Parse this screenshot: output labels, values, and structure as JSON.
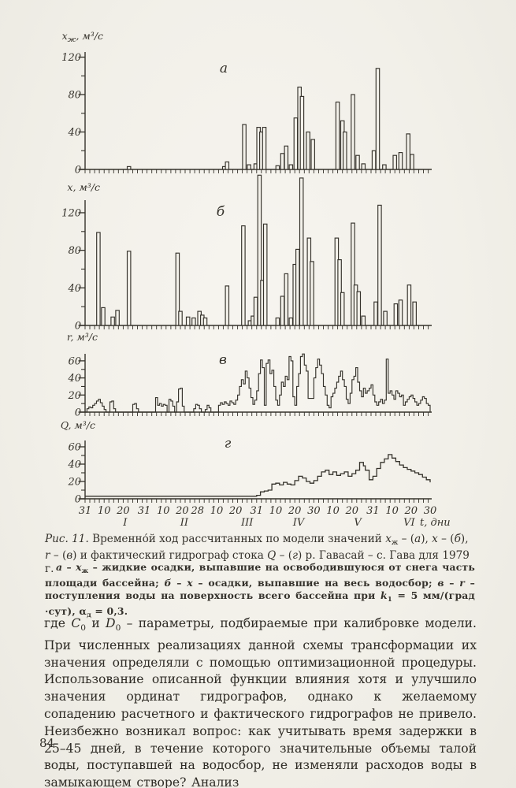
{
  "page": {
    "number": "84",
    "ink": "#35322b",
    "paper": "#f3f1ea"
  },
  "figure": {
    "caption": "<i>Рис. 11.</i> Временно́й ход рассчитанных по модели значений <i>x</i><sub>ж</sub> – (<i>а</i>), <i>x</i> – (<i>б</i>), <i>r</i> – (<i>в</i>) и фактический гидрограф стока <i>Q</i> – (<i>г</i>) р. Гавасай – с. Гава для 1979 г.",
    "legend": "<i>а</i> – <i>x</i><sub>ж</sub> – жидкие осадки, выпавшие на освободившуюся от снега часть площади бассейна; <i>б</i> – <i>x</i> – осадки, выпавшие на весь водосбор; <i>в</i> – <i>r</i> – поступления воды на поверхность всего бассейна при <i>k</i><sub>1</sub> = 5 мм/(град ·сут), α<sub>д</sub> = 0,3."
  },
  "text": {
    "paragraph": "где <i>C</i><sub>0</sub> и <i>D</i><sub>0</sub> – параметры, подбираемые при калибровке модели. При численных реализациях данной схемы трансформации их значения определяли с помощью оптимизационной процедуры. Использование описанной функции влияния хотя и улучшило значения ординат гидрографов, однако к желаемому сопадению расчетного и фактического гидрографов не привело. Неизбежно возникал вопрос: как учитывать время задержки в 25–45 дней, в течение которого значительные объемы талой воды, поступавшей на водосбор, не изменяли расходов воды в замыкающем створе? Анализ"
  },
  "chart_data": {
    "xaxis": {
      "domain_days": [
        0,
        181
      ],
      "minor_step_days": 2.5,
      "axis_title": "t, дни",
      "day_labels": [
        [
          0,
          "31"
        ],
        [
          10,
          "10"
        ],
        [
          20,
          "20"
        ],
        [
          31,
          "31"
        ],
        [
          41,
          "10"
        ],
        [
          51,
          "20"
        ],
        [
          59,
          "28"
        ],
        [
          69,
          "10"
        ],
        [
          79,
          "20"
        ],
        [
          90,
          "31"
        ],
        [
          100,
          "10"
        ],
        [
          110,
          "20"
        ],
        [
          120,
          "30"
        ],
        [
          130,
          "10"
        ],
        [
          140,
          "20"
        ],
        [
          151,
          "31"
        ],
        [
          161,
          "10"
        ],
        [
          171,
          "20"
        ],
        [
          181,
          "30"
        ]
      ],
      "months": [
        [
          21,
          "I"
        ],
        [
          52,
          "II"
        ],
        [
          85,
          "III"
        ],
        [
          112,
          "IV"
        ],
        [
          143,
          "V"
        ],
        [
          170,
          "VI"
        ]
      ]
    },
    "charts": [
      {
        "id": "a",
        "letter": "а",
        "type": "bar",
        "ylabel": {
          "var": "x",
          "sub": "ж",
          "units": ", м³/с"
        },
        "ylim": [
          0,
          120
        ],
        "yticks": [
          0,
          40,
          80,
          120
        ],
        "yminor": [
          20,
          60,
          100
        ],
        "bars": [
          [
            23,
            3
          ],
          [
            73,
            3
          ],
          [
            74.5,
            8
          ],
          [
            83.5,
            48
          ],
          [
            86,
            5
          ],
          [
            89.5,
            6
          ],
          [
            91,
            45
          ],
          [
            92.5,
            40
          ],
          [
            94,
            45
          ],
          [
            101,
            4
          ],
          [
            103.5,
            17
          ],
          [
            105.5,
            25
          ],
          [
            108,
            5
          ],
          [
            110.5,
            55
          ],
          [
            112.5,
            88
          ],
          [
            113.8,
            78
          ],
          [
            117,
            40
          ],
          [
            119.5,
            32
          ],
          [
            132.5,
            72
          ],
          [
            135,
            52
          ],
          [
            136.3,
            40
          ],
          [
            140.5,
            80
          ],
          [
            143,
            15
          ],
          [
            146,
            6
          ],
          [
            151.5,
            20
          ],
          [
            153.5,
            108
          ],
          [
            157,
            5
          ],
          [
            162.5,
            15
          ],
          [
            165.5,
            18
          ],
          [
            169.5,
            38
          ],
          [
            171.5,
            16
          ]
        ]
      },
      {
        "id": "b",
        "letter": "б",
        "type": "bar",
        "ylabel": {
          "var": "x",
          "sub": "",
          "units": ", м³/с"
        },
        "ylim": [
          0,
          120
        ],
        "yticks": [
          0,
          40,
          80,
          120
        ],
        "yminor": [
          20,
          60,
          100
        ],
        "bars": [
          [
            7,
            99
          ],
          [
            9.5,
            19
          ],
          [
            14.5,
            9
          ],
          [
            17,
            16
          ],
          [
            23,
            79
          ],
          [
            48.5,
            77
          ],
          [
            50,
            15
          ],
          [
            54,
            9
          ],
          [
            57,
            8
          ],
          [
            60,
            15
          ],
          [
            61.5,
            11
          ],
          [
            63,
            8
          ],
          [
            74.5,
            42
          ],
          [
            83,
            106
          ],
          [
            86.5,
            5
          ],
          [
            88,
            10
          ],
          [
            89.5,
            30
          ],
          [
            91.5,
            160
          ],
          [
            93,
            48
          ],
          [
            94.5,
            108
          ],
          [
            101,
            8
          ],
          [
            103.5,
            31
          ],
          [
            105.5,
            55
          ],
          [
            108,
            8
          ],
          [
            110,
            65
          ],
          [
            111.5,
            81
          ],
          [
            113.5,
            157
          ],
          [
            117.5,
            93
          ],
          [
            119,
            68
          ],
          [
            132,
            93
          ],
          [
            133.5,
            70
          ],
          [
            135,
            35
          ],
          [
            140.5,
            109
          ],
          [
            142,
            43
          ],
          [
            143.5,
            36
          ],
          [
            146,
            10
          ],
          [
            152.5,
            25
          ],
          [
            154.5,
            128
          ],
          [
            157.5,
            15
          ],
          [
            163,
            23
          ],
          [
            165.5,
            27
          ],
          [
            170,
            43
          ],
          [
            172.8,
            25
          ]
        ]
      },
      {
        "id": "v",
        "letter": "в",
        "type": "step",
        "ylabel": {
          "var": "r",
          "sub": "",
          "units": ", м³/с"
        },
        "ylim": [
          0,
          70
        ],
        "yticks": [
          0,
          20,
          40,
          60
        ],
        "yminor": [
          10,
          30,
          50
        ],
        "steps": [
          [
            1,
            4
          ],
          [
            2,
            6
          ],
          [
            3,
            5
          ],
          [
            4,
            8
          ],
          [
            5,
            10
          ],
          [
            6,
            13
          ],
          [
            7,
            15
          ],
          [
            8,
            11
          ],
          [
            9,
            7
          ],
          [
            10,
            3
          ],
          [
            13,
            12
          ],
          [
            14,
            13
          ],
          [
            15,
            4
          ],
          [
            25,
            9
          ],
          [
            26,
            10
          ],
          [
            27,
            4
          ],
          [
            37,
            17
          ],
          [
            38,
            8
          ],
          [
            39,
            10
          ],
          [
            40,
            7
          ],
          [
            41,
            9
          ],
          [
            42,
            8
          ],
          [
            44,
            15
          ],
          [
            45,
            13
          ],
          [
            46,
            7
          ],
          [
            48,
            12
          ],
          [
            49,
            27
          ],
          [
            50,
            28
          ],
          [
            51,
            7
          ],
          [
            57,
            4
          ],
          [
            58,
            9
          ],
          [
            59,
            8
          ],
          [
            60,
            4
          ],
          [
            63,
            3
          ],
          [
            64,
            8
          ],
          [
            65,
            5
          ],
          [
            70,
            8
          ],
          [
            71,
            11
          ],
          [
            72,
            9
          ],
          [
            73,
            12
          ],
          [
            74,
            10
          ],
          [
            75,
            8
          ],
          [
            76,
            13
          ],
          [
            77,
            11
          ],
          [
            78,
            9
          ],
          [
            79,
            14
          ],
          [
            80,
            20
          ],
          [
            81,
            30
          ],
          [
            82,
            38
          ],
          [
            83,
            33
          ],
          [
            84,
            48
          ],
          [
            85,
            40
          ],
          [
            86,
            28
          ],
          [
            87,
            17
          ],
          [
            88,
            9
          ],
          [
            89,
            14
          ],
          [
            90,
            25
          ],
          [
            91,
            45
          ],
          [
            92,
            61
          ],
          [
            93,
            52
          ],
          [
            94,
            8
          ],
          [
            95,
            57
          ],
          [
            96,
            61
          ],
          [
            97,
            45
          ],
          [
            98,
            49
          ],
          [
            99,
            30
          ],
          [
            100,
            14
          ],
          [
            101,
            8
          ],
          [
            102,
            20
          ],
          [
            103,
            35
          ],
          [
            104,
            30
          ],
          [
            105,
            42
          ],
          [
            106,
            38
          ],
          [
            107,
            65
          ],
          [
            108,
            60
          ],
          [
            109,
            18
          ],
          [
            110,
            8
          ],
          [
            111,
            30
          ],
          [
            112,
            45
          ],
          [
            113,
            65
          ],
          [
            114,
            68
          ],
          [
            115,
            55
          ],
          [
            116,
            48
          ],
          [
            117,
            16
          ],
          [
            118,
            16
          ],
          [
            119,
            16
          ],
          [
            120,
            40
          ],
          [
            121,
            52
          ],
          [
            122,
            62
          ],
          [
            123,
            55
          ],
          [
            124,
            45
          ],
          [
            125,
            30
          ],
          [
            126,
            20
          ],
          [
            127,
            8
          ],
          [
            128,
            5
          ],
          [
            129,
            18
          ],
          [
            130,
            22
          ],
          [
            131,
            28
          ],
          [
            132,
            35
          ],
          [
            133,
            42
          ],
          [
            134,
            48
          ],
          [
            135,
            38
          ],
          [
            136,
            30
          ],
          [
            137,
            15
          ],
          [
            138,
            10
          ],
          [
            139,
            22
          ],
          [
            140,
            38
          ],
          [
            141,
            42
          ],
          [
            142,
            52
          ],
          [
            143,
            35
          ],
          [
            144,
            25
          ],
          [
            145,
            18
          ],
          [
            146,
            28
          ],
          [
            147,
            22
          ],
          [
            148,
            25
          ],
          [
            149,
            28
          ],
          [
            150,
            32
          ],
          [
            151,
            20
          ],
          [
            152,
            12
          ],
          [
            153,
            8
          ],
          [
            154,
            12
          ],
          [
            155,
            15
          ],
          [
            156,
            10
          ],
          [
            157,
            14
          ],
          [
            158,
            62
          ],
          [
            159,
            22
          ],
          [
            160,
            25
          ],
          [
            161,
            20
          ],
          [
            162,
            15
          ],
          [
            163,
            25
          ],
          [
            164,
            22
          ],
          [
            165,
            18
          ],
          [
            166,
            20
          ],
          [
            167,
            8
          ],
          [
            168,
            12
          ],
          [
            169,
            15
          ],
          [
            170,
            18
          ],
          [
            171,
            20
          ],
          [
            172,
            16
          ],
          [
            173,
            12
          ],
          [
            174,
            8
          ],
          [
            175,
            10
          ],
          [
            176,
            14
          ],
          [
            177,
            18
          ],
          [
            178,
            16
          ],
          [
            179,
            10
          ],
          [
            180,
            8
          ],
          [
            181,
            6
          ]
        ]
      },
      {
        "id": "g",
        "letter": "г",
        "type": "line",
        "ylabel": {
          "var": "Q",
          "sub": "",
          "units": ", м³/с"
        },
        "ylim": [
          0,
          60
        ],
        "yticks": [
          0,
          20,
          40,
          60
        ],
        "yminor": [
          10,
          30,
          50
        ],
        "points": [
          [
            0,
            3
          ],
          [
            88,
            3
          ],
          [
            90,
            4
          ],
          [
            92,
            8
          ],
          [
            94,
            9
          ],
          [
            96,
            10
          ],
          [
            98,
            17
          ],
          [
            100,
            18
          ],
          [
            102,
            16
          ],
          [
            104,
            19
          ],
          [
            106,
            17
          ],
          [
            108,
            16
          ],
          [
            110,
            21
          ],
          [
            112,
            26
          ],
          [
            114,
            24
          ],
          [
            116,
            20
          ],
          [
            118,
            18
          ],
          [
            120,
            21
          ],
          [
            122,
            26
          ],
          [
            124,
            31
          ],
          [
            126,
            33
          ],
          [
            128,
            28
          ],
          [
            130,
            31
          ],
          [
            132,
            27
          ],
          [
            134,
            29
          ],
          [
            136,
            31
          ],
          [
            138,
            26
          ],
          [
            140,
            29
          ],
          [
            142,
            33
          ],
          [
            144,
            42
          ],
          [
            146,
            38
          ],
          [
            147,
            33
          ],
          [
            149,
            22
          ],
          [
            151,
            26
          ],
          [
            153,
            35
          ],
          [
            155,
            42
          ],
          [
            157,
            46
          ],
          [
            159,
            51
          ],
          [
            161,
            47
          ],
          [
            163,
            43
          ],
          [
            165,
            39
          ],
          [
            167,
            36
          ],
          [
            169,
            34
          ],
          [
            171,
            32
          ],
          [
            173,
            30
          ],
          [
            175,
            28
          ],
          [
            177,
            25
          ],
          [
            179,
            22
          ],
          [
            181,
            19
          ]
        ]
      }
    ]
  }
}
